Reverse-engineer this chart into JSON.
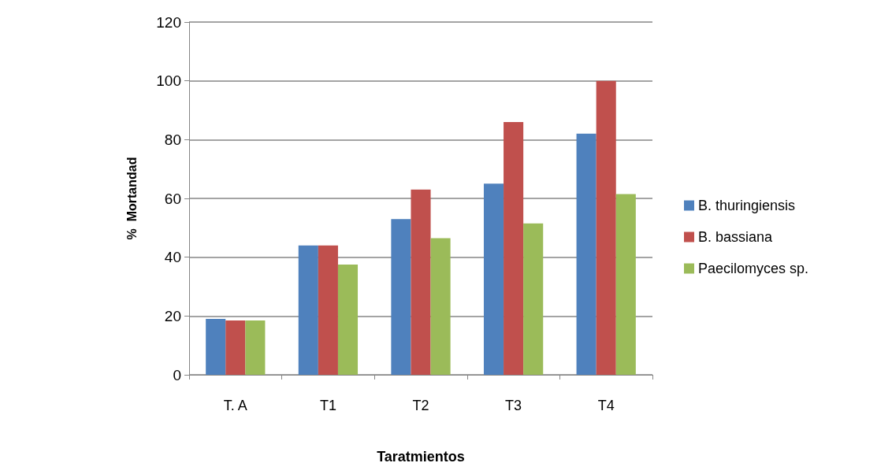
{
  "chart_data": {
    "type": "bar",
    "xlabel": "Taratmientos",
    "ylabel": "%  Mortandad",
    "categories": [
      "T. A",
      "T1",
      "T2",
      "T3",
      "T4"
    ],
    "series": [
      {
        "name": "B. thuringiensis",
        "color": "#4f81bd",
        "values": [
          19,
          44,
          53,
          65,
          82
        ]
      },
      {
        "name": "B. bassiana",
        "color": "#c0504d",
        "values": [
          18.5,
          44,
          63,
          86,
          100
        ]
      },
      {
        "name": "Paecilomyces sp.",
        "color": "#9bbb59",
        "values": [
          18.5,
          37.5,
          46.5,
          51.5,
          61.5
        ]
      }
    ],
    "ylim": [
      0,
      120
    ],
    "yticks": [
      0,
      20,
      40,
      60,
      80,
      100,
      120
    ],
    "grid": "y",
    "legend": "right"
  }
}
